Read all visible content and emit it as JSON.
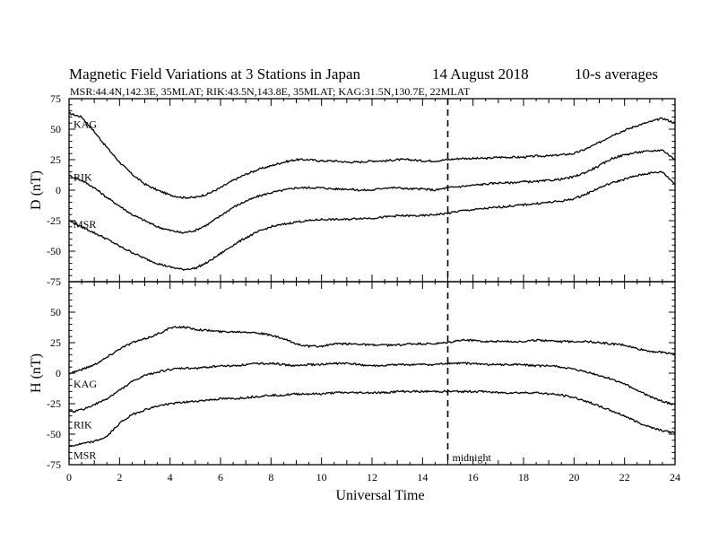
{
  "header": {
    "title": "Magnetic Field Variations at 3 Stations in Japan",
    "date": "14  August  2018",
    "averaging": "10-s averages",
    "stations_info": "MSR:44.4N,142.3E, 35MLAT;  RIK:43.5N,143.8E, 35MLAT;  KAG:31.5N,130.7E, 22MLAT"
  },
  "chart_data": [
    {
      "type": "line",
      "ylabel": "D (nT)",
      "ylim": [
        -75,
        75
      ],
      "yticks": [
        75,
        50,
        25,
        0,
        -25,
        -50,
        -75
      ],
      "xlim": [
        0,
        24
      ],
      "xticks": [
        0,
        2,
        4,
        6,
        8,
        10,
        12,
        14,
        16,
        18,
        20,
        22,
        24
      ],
      "grid": false,
      "x": [
        0,
        0.5,
        1,
        1.5,
        2,
        2.5,
        3,
        3.5,
        4,
        4.5,
        5,
        5.5,
        6,
        6.5,
        7,
        7.5,
        8,
        8.5,
        9,
        9.5,
        10,
        10.5,
        11,
        11.5,
        12,
        12.5,
        13,
        13.5,
        14,
        14.5,
        15,
        15.5,
        16,
        16.5,
        17,
        17.5,
        18,
        18.5,
        19,
        19.5,
        20,
        20.5,
        21,
        21.5,
        22,
        22.5,
        23,
        23.5,
        24
      ],
      "series": [
        {
          "name": "KAG",
          "values": [
            63,
            60,
            48,
            35,
            23,
            13,
            5,
            0,
            -4,
            -6,
            -6,
            -3,
            2,
            8,
            13,
            17,
            20,
            23,
            25,
            25,
            24,
            24,
            23,
            23,
            24,
            24,
            25,
            25,
            24,
            24,
            25,
            26,
            26,
            26,
            27,
            27,
            27,
            28,
            28,
            29,
            30,
            34,
            39,
            45,
            49,
            53,
            56,
            59,
            55
          ]
        },
        {
          "name": "RIK",
          "values": [
            12,
            8,
            2,
            -6,
            -13,
            -20,
            -25,
            -30,
            -33,
            -35,
            -33,
            -28,
            -21,
            -14,
            -9,
            -5,
            -2,
            0,
            2,
            2,
            2,
            1,
            1,
            0,
            0,
            2,
            2,
            1,
            1,
            0,
            2,
            3,
            4,
            5,
            6,
            6,
            7,
            7,
            8,
            9,
            11,
            15,
            20,
            26,
            29,
            31,
            32,
            33,
            25
          ]
        },
        {
          "name": "MSR",
          "values": [
            -25,
            -30,
            -35,
            -40,
            -46,
            -51,
            -56,
            -60,
            -63,
            -65,
            -64,
            -59,
            -52,
            -45,
            -39,
            -34,
            -30,
            -28,
            -26,
            -25,
            -24,
            -24,
            -24,
            -23,
            -23,
            -22,
            -21,
            -21,
            -21,
            -20,
            -19,
            -17,
            -16,
            -15,
            -14,
            -13,
            -12,
            -11,
            -10,
            -9,
            -7,
            -3,
            2,
            6,
            9,
            12,
            14,
            15,
            5
          ]
        }
      ]
    },
    {
      "type": "line",
      "ylabel": "H (nT)",
      "ylim": [
        -75,
        75
      ],
      "yticks": [
        50,
        25,
        0,
        -25,
        -50,
        -75
      ],
      "xlim": [
        0,
        24
      ],
      "xticks": [
        0,
        2,
        4,
        6,
        8,
        10,
        12,
        14,
        16,
        18,
        20,
        22,
        24
      ],
      "xlabel": "Universal Time",
      "grid": false,
      "x": [
        0,
        0.5,
        1,
        1.5,
        2,
        2.5,
        3,
        3.5,
        4,
        4.5,
        5,
        5.5,
        6,
        6.5,
        7,
        7.5,
        8,
        8.5,
        9,
        9.5,
        10,
        10.5,
        11,
        11.5,
        12,
        12.5,
        13,
        13.5,
        14,
        14.5,
        15,
        15.5,
        16,
        16.5,
        17,
        17.5,
        18,
        18.5,
        19,
        19.5,
        20,
        20.5,
        21,
        21.5,
        22,
        22.5,
        23,
        23.5,
        24
      ],
      "series": [
        {
          "name": "KAG",
          "values": [
            0,
            3,
            7,
            13,
            20,
            25,
            28,
            32,
            37,
            38,
            36,
            35,
            34,
            34,
            34,
            33,
            31,
            28,
            24,
            22,
            22,
            24,
            24,
            24,
            23,
            23,
            23,
            24,
            24,
            24,
            25,
            27,
            27,
            26,
            26,
            26,
            26,
            27,
            27,
            26,
            26,
            26,
            25,
            24,
            23,
            20,
            18,
            17,
            16
          ]
        },
        {
          "name": "RIK",
          "values": [
            -32,
            -30,
            -26,
            -21,
            -14,
            -7,
            -2,
            1,
            3,
            4,
            4,
            5,
            6,
            6,
            7,
            8,
            8,
            7,
            6,
            7,
            7,
            8,
            8,
            7,
            6,
            6,
            7,
            7,
            7,
            7,
            8,
            8,
            8,
            7,
            7,
            7,
            7,
            6,
            6,
            5,
            3,
            1,
            -2,
            -5,
            -9,
            -14,
            -19,
            -23,
            -26
          ]
        },
        {
          "name": "MSR",
          "values": [
            -60,
            -58,
            -56,
            -52,
            -41,
            -34,
            -30,
            -27,
            -25,
            -24,
            -23,
            -22,
            -21,
            -21,
            -20,
            -19,
            -18,
            -18,
            -17,
            -17,
            -17,
            -16,
            -16,
            -16,
            -16,
            -16,
            -15,
            -15,
            -15,
            -15,
            -15,
            -15,
            -15,
            -15,
            -16,
            -16,
            -16,
            -16,
            -17,
            -18,
            -20,
            -23,
            -27,
            -31,
            -35,
            -40,
            -44,
            -47,
            -49
          ]
        }
      ]
    }
  ],
  "annotations": {
    "marker_time": 15,
    "marker_label": "midnight"
  }
}
